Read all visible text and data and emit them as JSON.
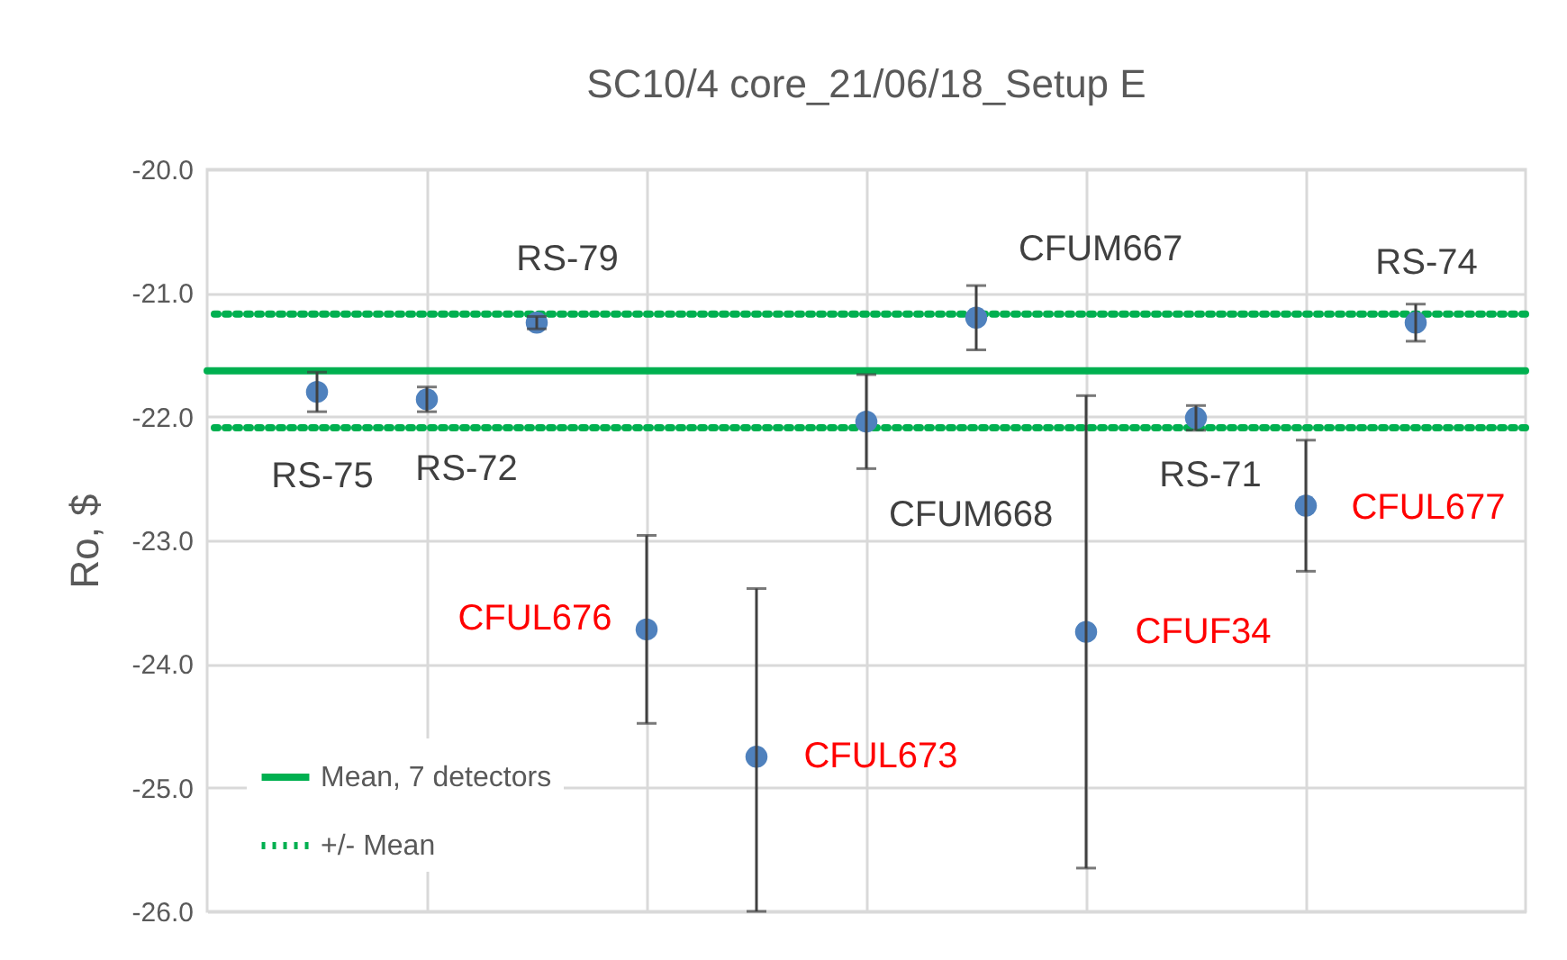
{
  "chart_data": {
    "type": "scatter",
    "title": "SC10/4 core_21/06/18_Setup E",
    "ylabel": "Ro, $",
    "categories": [
      null,
      null,
      null,
      null,
      null,
      null,
      null,
      null,
      null,
      null,
      null
    ],
    "series": [
      {
        "color": "#4f81bd",
        "values": [
          -21.8,
          -21.86,
          -21.24,
          null,
          null,
          -22.04,
          -21.2,
          null,
          -22.01,
          null,
          -21.24
        ],
        "errors": [
          0.16,
          0.1,
          0.05,
          null,
          null,
          0.38,
          0.26,
          null,
          0.1,
          null,
          0.15
        ],
        "value_labels": [
          "RS-75",
          "RS-72",
          "RS-79",
          null,
          null,
          "CFUM668",
          "CFUM667",
          null,
          "RS-71",
          null,
          "RS-74"
        ]
      },
      {
        "color": "#4f81bd",
        "values": [
          null,
          null,
          null,
          -23.72,
          -24.75,
          null,
          null,
          -23.74,
          null,
          -22.72,
          null
        ],
        "errors": [
          null,
          null,
          null,
          0.76,
          [
            -26.0,
            -23.39
          ],
          null,
          null,
          1.91,
          null,
          0.53,
          null
        ],
        "value_labels": [
          null,
          null,
          null,
          "CFUL676",
          "CFUL673",
          null,
          null,
          "CFUF34",
          null,
          "CFUL677",
          null
        ]
      }
    ],
    "marker": "circle",
    "ylim": [
      -26,
      -20
    ],
    "yticks": [
      {
        "value": -26,
        "label": "-26.0"
      },
      {
        "value": -25,
        "label": "-25.0"
      },
      {
        "value": -24,
        "label": "-24.0"
      },
      {
        "value": -23,
        "label": "-23.0"
      },
      {
        "value": -22,
        "label": "-22.0"
      },
      {
        "value": -21,
        "label": "-21.0"
      },
      {
        "value": -20,
        "label": "-20.0"
      }
    ],
    "grid": true,
    "legend": "bottom left",
    "ref_lines": [
      {
        "axis": "y",
        "value": -21.63,
        "label": "Mean, 7 detectors",
        "color": "#00b050",
        "line_style": "solid"
      },
      {
        "axis": "y",
        "value": -21.17,
        "label": "+/- Mean",
        "color": "#00b050",
        "line_style": "dotted"
      },
      {
        "axis": "y",
        "value": -22.09,
        "color": "#00b050",
        "line_style": "dotted"
      }
    ]
  }
}
